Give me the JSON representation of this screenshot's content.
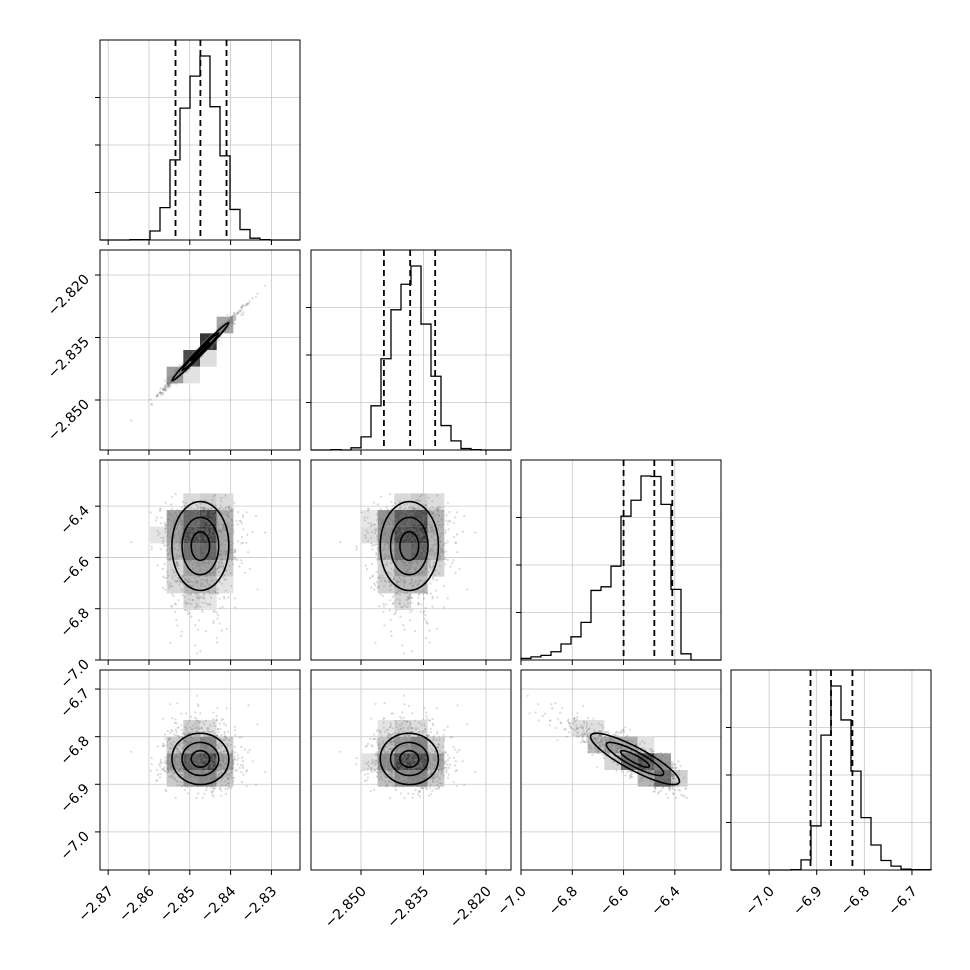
{
  "chart_data": {
    "type": "corner",
    "grid": true,
    "legend": "none",
    "parameters": [
      {
        "index": 0,
        "range": [
          -2.872,
          -2.823
        ],
        "ticks": [
          -2.87,
          -2.86,
          -2.85,
          -2.84,
          -2.83
        ],
        "tick_labels": [
          "−2.87",
          "−2.86",
          "−2.85",
          "−2.84",
          "−2.83"
        ],
        "mean": -2.8475,
        "sd": 0.0045,
        "quantiles": [
          -2.8535,
          -2.8474,
          -2.841
        ]
      },
      {
        "index": 1,
        "range": [
          -2.862,
          -2.814
        ],
        "ticks": [
          -2.85,
          -2.835,
          -2.82
        ],
        "tick_labels": [
          "−2.850",
          "−2.835",
          "−2.820"
        ],
        "mean": -2.8385,
        "sd": 0.0045,
        "quantiles": [
          -2.8445,
          -2.8382,
          -2.8322
        ]
      },
      {
        "index": 2,
        "range": [
          -7.0,
          -6.22
        ],
        "ticks": [
          -7.0,
          -6.8,
          -6.6,
          -6.4
        ],
        "tick_labels": [
          "−7.0",
          "−6.8",
          "−6.6",
          "−6.4"
        ],
        "mean": -6.47,
        "sd": 0.11,
        "quantiles": [
          -6.6,
          -6.48,
          -6.41
        ]
      },
      {
        "index": 3,
        "range": [
          -7.08,
          -6.66
        ],
        "ticks": [
          -7.0,
          -6.9,
          -6.8,
          -6.7
        ],
        "tick_labels": [
          "−7.0",
          "−6.9",
          "−6.8",
          "−6.7"
        ],
        "mean": -6.87,
        "sd": 0.035,
        "quantiles": [
          -6.913,
          -6.87,
          -6.825
        ]
      }
    ],
    "correlations": [
      [
        1,
        2,
        0.99
      ],
      [
        3,
        2,
        -0.85
      ]
    ]
  }
}
